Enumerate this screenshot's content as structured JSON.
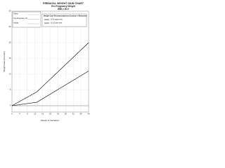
{
  "chart_data": {
    "type": "line",
    "title": "PRENATAL WEIGHT GAIN CHART",
    "subtitle": "Pre-Pregnancy Weight",
    "bmi_label": "BMI ≥ 30.0",
    "form_fields": [
      "Name",
      "Pre-Pregnancy Wt",
      "Height"
    ],
    "box_title": "Weight Gain Recommendations (Institute of Medicine)",
    "x_label": "Weeks of Gestation",
    "y_label": "Weight Gain (Pounds)",
    "x": [
      0,
      13,
      40
    ],
    "series": [
      {
        "name": "20 lb upper limit",
        "color": "#000000",
        "values": [
          0,
          4.4,
          20
        ]
      },
      {
        "name": "11 lb lower limit",
        "color": "#000000",
        "values": [
          0,
          1.1,
          11
        ]
      }
    ],
    "xlim": [
      0,
      40
    ],
    "xticks": [
      0,
      4,
      8,
      12,
      16,
      20,
      24,
      28,
      32,
      36,
      40
    ],
    "ylim": [
      -2,
      30
    ],
    "yticks": [
      0,
      5,
      10,
      15,
      20,
      25,
      30
    ],
    "grid": true
  }
}
